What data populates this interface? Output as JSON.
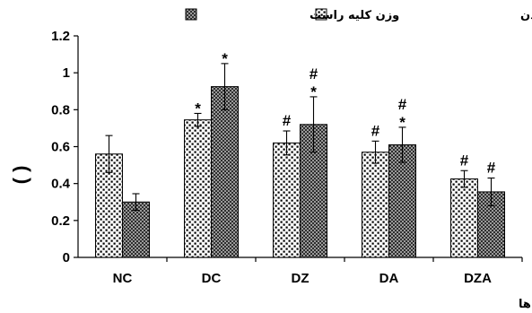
{
  "chart_data": {
    "type": "bar",
    "categories": [
      "NC",
      "DC",
      "DZ",
      "DA",
      "DZA"
    ],
    "series": [
      {
        "name": "درصد وزن کلیه به وزن بدن",
        "pattern": "dots",
        "values": [
          0.56,
          0.745,
          0.62,
          0.57,
          0.425
        ],
        "errors": [
          0.1,
          0.035,
          0.065,
          0.06,
          0.045
        ],
        "marks": [
          "",
          "*",
          "#",
          "#",
          "#"
        ]
      },
      {
        "name": "وزن کلیه راست",
        "pattern": "checker",
        "values": [
          0.3,
          0.925,
          0.72,
          0.61,
          0.355
        ],
        "errors": [
          0.045,
          0.125,
          0.15,
          0.095,
          0.075
        ],
        "marks": [
          "",
          "*",
          "#\n*",
          "#\n*",
          "#"
        ]
      }
    ],
    "ylim": [
      0,
      1.2
    ],
    "yticks": [
      "0",
      "0.2",
      "0.4",
      "0.6",
      "0.8",
      "1",
      "1.2"
    ],
    "ylabel": "( )",
    "xlabel": "گروه ها",
    "legend_position": "top",
    "grid": false,
    "colors": {
      "dots_fg": "#000000",
      "dots_bg": "#ffffff",
      "checker_dark": "#3a3a3a",
      "checker_light": "#9a9a9a"
    }
  }
}
